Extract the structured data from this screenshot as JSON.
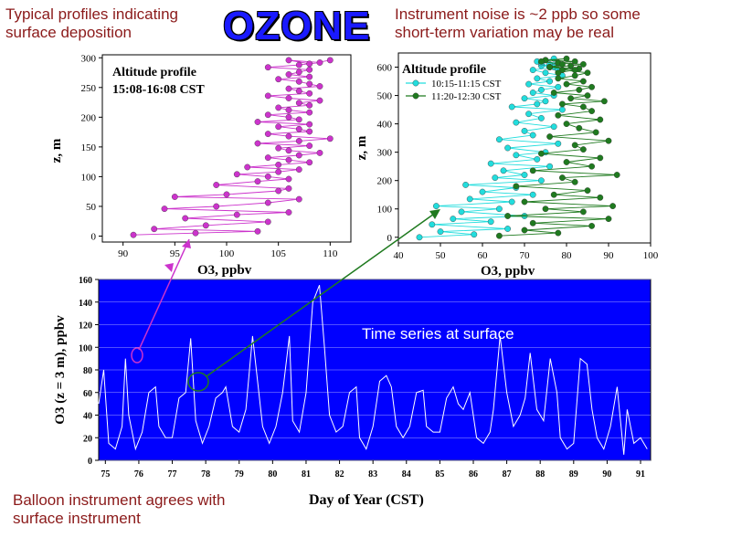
{
  "header": {
    "title": "OZONE",
    "note_left": [
      "Typical profiles indicating",
      "surface deposition"
    ],
    "note_right": [
      "Instrument noise is ~2 ppb so some",
      "short-term variation may be real"
    ],
    "note_bottom": [
      "Balloon instrument agrees with",
      "surface instrument"
    ]
  },
  "colors": {
    "magenta": "#cc33cc",
    "cyan": "#22dddd",
    "green": "#1f7a1f",
    "plot_bg": "#0000ff",
    "accent_text": "#8b1a1a"
  },
  "chart_data": [
    {
      "type": "line",
      "panel": "profile-left",
      "title": "",
      "annotation": [
        "Altitude profile",
        "15:08-16:08 CST"
      ],
      "xlabel": "O3, ppbv",
      "ylabel": "z, m",
      "xlim": [
        88,
        112
      ],
      "ylim": [
        -10,
        305
      ],
      "xticks": [
        90,
        95,
        100,
        105,
        110
      ],
      "yticks": [
        0,
        50,
        100,
        150,
        200,
        250,
        300
      ],
      "series": [
        {
          "name": "",
          "color": "#cc33cc",
          "x": [
            91,
            97,
            103,
            93,
            98,
            104,
            96,
            101,
            106,
            94,
            99,
            104,
            107,
            95,
            100,
            105,
            106,
            99,
            103,
            106,
            104,
            101,
            105,
            107,
            102,
            105,
            108,
            106,
            104,
            107,
            109,
            106,
            105,
            108,
            103,
            107,
            110,
            106,
            104,
            108,
            107,
            105,
            108,
            103,
            107,
            106,
            104,
            108,
            106,
            105,
            108,
            107,
            109,
            106,
            104,
            108,
            107,
            106,
            109,
            108,
            107,
            105,
            108,
            106,
            107,
            108,
            104,
            107,
            109,
            106,
            108,
            110
          ],
          "y": [
            2,
            5,
            8,
            12,
            18,
            24,
            30,
            36,
            40,
            46,
            50,
            56,
            62,
            66,
            70,
            76,
            80,
            86,
            92,
            96,
            100,
            104,
            108,
            112,
            116,
            120,
            124,
            128,
            132,
            136,
            140,
            144,
            148,
            152,
            156,
            160,
            164,
            168,
            172,
            176,
            180,
            184,
            188,
            192,
            196,
            200,
            204,
            208,
            212,
            216,
            220,
            224,
            228,
            232,
            236,
            240,
            244,
            248,
            252,
            256,
            260,
            264,
            268,
            272,
            276,
            280,
            284,
            288,
            292,
            296,
            290,
            296
          ]
        }
      ]
    },
    {
      "type": "line",
      "panel": "profile-right",
      "title": "",
      "annotation": [
        "Altitude profile"
      ],
      "xlabel": "O3, ppbv",
      "ylabel": "z, m",
      "xlim": [
        40,
        100
      ],
      "ylim": [
        -20,
        650
      ],
      "xticks": [
        40,
        50,
        60,
        70,
        80,
        90,
        100
      ],
      "yticks": [
        0,
        100,
        200,
        300,
        400,
        500,
        600
      ],
      "series": [
        {
          "name": "10:15-11:15 CST",
          "color": "#22dddd",
          "x": [
            45,
            58,
            50,
            66,
            48,
            62,
            53,
            70,
            55,
            64,
            49,
            67,
            57,
            72,
            60,
            68,
            56,
            74,
            63,
            70,
            65,
            76,
            62,
            73,
            68,
            75,
            66,
            78,
            64,
            72,
            70,
            77,
            68,
            74,
            71,
            79,
            67,
            73,
            75,
            70,
            77,
            72,
            74,
            78,
            71,
            76,
            73,
            79,
            75,
            72,
            77,
            74,
            76,
            78,
            73,
            75,
            77,
            74,
            76,
            78
          ],
          "y": [
            0,
            10,
            20,
            30,
            45,
            55,
            65,
            75,
            90,
            100,
            110,
            125,
            135,
            150,
            160,
            175,
            185,
            200,
            210,
            220,
            235,
            250,
            260,
            275,
            290,
            300,
            315,
            330,
            345,
            360,
            375,
            390,
            405,
            420,
            435,
            450,
            460,
            470,
            480,
            490,
            500,
            510,
            520,
            530,
            540,
            550,
            560,
            570,
            580,
            590,
            600,
            605,
            610,
            615,
            620,
            625,
            630,
            615,
            600,
            590
          ]
        },
        {
          "name": "11:20-12:30 CST",
          "color": "#1f7a1f",
          "x": [
            64,
            78,
            70,
            86,
            72,
            90,
            66,
            84,
            75,
            91,
            70,
            88,
            77,
            85,
            68,
            82,
            79,
            92,
            72,
            86,
            80,
            88,
            74,
            84,
            82,
            90,
            76,
            87,
            83,
            80,
            88,
            78,
            86,
            84,
            79,
            89,
            81,
            85,
            77,
            83,
            86,
            80,
            84,
            78,
            82,
            85,
            79,
            83,
            76,
            81,
            84,
            78,
            82,
            75,
            80,
            74,
            79,
            76,
            82,
            78
          ],
          "y": [
            5,
            15,
            25,
            40,
            50,
            65,
            75,
            90,
            100,
            110,
            125,
            140,
            150,
            165,
            180,
            195,
            210,
            220,
            235,
            250,
            265,
            280,
            295,
            310,
            325,
            340,
            355,
            370,
            385,
            400,
            415,
            430,
            445,
            460,
            470,
            480,
            490,
            500,
            510,
            520,
            530,
            540,
            550,
            560,
            570,
            580,
            590,
            595,
            600,
            605,
            610,
            615,
            620,
            625,
            630,
            620,
            610,
            600,
            590,
            580
          ]
        }
      ]
    },
    {
      "type": "line",
      "panel": "timeseries",
      "title": "",
      "annotation": [
        "Time series at surface"
      ],
      "xlabel": "Day of Year (CST)",
      "ylabel": "O3 (z = 3 m), ppbv",
      "xlim": [
        74.8,
        91.3
      ],
      "ylim": [
        0,
        160
      ],
      "xticks": [
        75,
        76,
        77,
        78,
        79,
        80,
        81,
        82,
        83,
        84,
        85,
        86,
        87,
        88,
        89,
        90,
        91
      ],
      "yticks": [
        0,
        20,
        40,
        60,
        80,
        100,
        120,
        140,
        160
      ],
      "series": [
        {
          "name": "",
          "color": "#ffffff",
          "x": [
            74.8,
            74.95,
            75.1,
            75.3,
            75.5,
            75.6,
            75.7,
            75.9,
            76.1,
            76.3,
            76.5,
            76.6,
            76.8,
            77.0,
            77.2,
            77.4,
            77.55,
            77.7,
            77.9,
            78.1,
            78.3,
            78.5,
            78.6,
            78.8,
            79.0,
            79.2,
            79.4,
            79.55,
            79.7,
            79.9,
            80.1,
            80.3,
            80.5,
            80.6,
            80.8,
            81.0,
            81.2,
            81.4,
            81.55,
            81.7,
            81.9,
            82.1,
            82.3,
            82.5,
            82.6,
            82.8,
            83.0,
            83.2,
            83.4,
            83.55,
            83.7,
            83.9,
            84.1,
            84.3,
            84.5,
            84.6,
            84.8,
            85.0,
            85.2,
            85.4,
            85.55,
            85.7,
            85.9,
            86.1,
            86.3,
            86.5,
            86.6,
            86.8,
            87.0,
            87.2,
            87.4,
            87.55,
            87.7,
            87.9,
            88.1,
            88.3,
            88.5,
            88.6,
            88.8,
            89.0,
            89.2,
            89.4,
            89.55,
            89.7,
            89.9,
            90.1,
            90.3,
            90.5,
            90.6,
            90.8,
            91.0,
            91.2
          ],
          "y": [
            50,
            80,
            15,
            10,
            30,
            90,
            40,
            10,
            25,
            60,
            65,
            30,
            20,
            20,
            55,
            60,
            108,
            35,
            15,
            30,
            55,
            60,
            65,
            30,
            25,
            45,
            110,
            70,
            30,
            15,
            30,
            60,
            110,
            35,
            25,
            60,
            140,
            155,
            100,
            40,
            25,
            30,
            60,
            65,
            20,
            10,
            30,
            70,
            75,
            65,
            30,
            20,
            30,
            60,
            62,
            30,
            25,
            25,
            55,
            65,
            50,
            45,
            60,
            20,
            15,
            25,
            45,
            110,
            60,
            30,
            40,
            55,
            95,
            45,
            35,
            90,
            60,
            20,
            10,
            15,
            90,
            85,
            45,
            20,
            10,
            30,
            65,
            5,
            45,
            15,
            20,
            10
          ]
        }
      ]
    }
  ]
}
